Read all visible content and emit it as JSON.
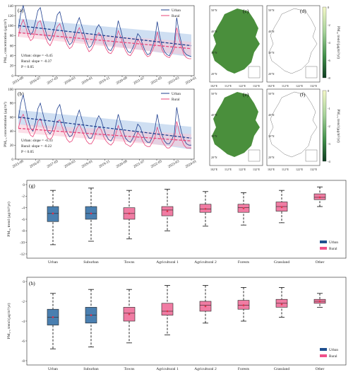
{
  "colors": {
    "urban": "#1f3f8f",
    "rural": "#e8457a",
    "urban_box": "#4a7fb0",
    "rural_box": "#f07ca3",
    "band_urban": "#a8c5e8",
    "band_rural": "#f7c4d6",
    "whisker": "#111111",
    "mean_dot": "#e0304a"
  },
  "panel_a": {
    "tag": "(a)",
    "ylabel": "PM₁₀ concentration (μg/m³)",
    "note_urban": "Urban: slope = -0.45",
    "note_rural": "Rural: slope = -0.37",
    "note_p": "P < 0.05"
  },
  "panel_b": {
    "tag": "(b)",
    "ylabel": "PM₂.₅ concentration (μg/m³)",
    "note_urban": "Urban: slope = -0.33",
    "note_rural": "Rural: slope = -0.22",
    "note_p": "P < 0.05"
  },
  "panel_g": {
    "tag": "(g)",
    "ylabel": "PM₁₀ trend (μg/m³/yr)"
  },
  "panel_h": {
    "tag": "(h)",
    "ylabel": "PM₂.₅ trend (μg/m³/yr)"
  },
  "maps": {
    "c": {
      "tag": "(c)",
      "cbar_label": "PM₁₀ trend (μg/m³/yr)",
      "cbar_ticks": [
        "0",
        "-2",
        "-4",
        "-6",
        "-8"
      ]
    },
    "d": {
      "tag": "(d)"
    },
    "e": {
      "tag": "(e)",
      "cbar_label": "PM₂.₅ trend (μg/m³/yr)",
      "cbar_ticks": [
        "0",
        "-1",
        "-2",
        "-3",
        "-4"
      ]
    },
    "f": {
      "tag": "(f)"
    },
    "lat_ticks": [
      "50°N",
      "40°N",
      "30°N",
      "20°N"
    ],
    "lon_ticks": [
      "102°E",
      "112°E",
      "122°E",
      "132°E"
    ]
  },
  "chart_data": [
    {
      "type": "line",
      "id": "a",
      "x_ticks": [
        "2015-09",
        "2016-07",
        "2017-05",
        "2018-03",
        "2019-01",
        "2019-11",
        "2020-09",
        "2021-07",
        "2022-05",
        "2023-03",
        "2024-01"
      ],
      "ylim": [
        0,
        140
      ],
      "y_ticks": [
        0,
        20,
        40,
        60,
        80,
        100,
        120,
        140
      ],
      "series": [
        {
          "name": "Urban",
          "values": [
            95,
            125,
            140,
            118,
            95,
            82,
            88,
            108,
            130,
            136,
            112,
            92,
            76,
            70,
            82,
            100,
            122,
            128,
            108,
            88,
            72,
            62,
            66,
            82,
            104,
            116,
            100,
            84,
            68,
            56,
            60,
            72,
            94,
            102,
            94,
            76,
            62,
            52,
            50,
            60,
            82,
            110,
            92,
            72,
            58,
            48,
            46,
            56,
            68,
            84,
            78,
            62,
            50,
            42,
            44,
            58,
            72,
            108,
            80,
            60,
            48,
            42,
            40,
            50,
            64,
            116,
            86,
            64,
            48,
            42,
            40,
            38
          ],
          "trend_start": 100,
          "trend_end": 60
        },
        {
          "name": "Rural",
          "values": [
            78,
            100,
            112,
            98,
            80,
            70,
            74,
            90,
            106,
            110,
            94,
            78,
            66,
            60,
            70,
            84,
            98,
            104,
            90,
            74,
            62,
            54,
            58,
            70,
            86,
            96,
            84,
            72,
            58,
            48,
            52,
            62,
            78,
            86,
            80,
            66,
            54,
            46,
            44,
            52,
            70,
            90,
            78,
            62,
            50,
            42,
            40,
            48,
            58,
            72,
            66,
            54,
            44,
            38,
            40,
            50,
            62,
            88,
            68,
            52,
            42,
            38,
            36,
            44,
            54,
            96,
            74,
            56,
            42,
            36,
            34,
            34
          ],
          "trend_start": 86,
          "trend_end": 54
        }
      ],
      "legend": "top-right"
    },
    {
      "type": "line",
      "id": "b",
      "x_ticks": [
        "2015-09",
        "2016-07",
        "2017-05",
        "2018-03",
        "2019-01",
        "2019-11",
        "2020-09",
        "2021-07",
        "2022-05",
        "2023-03",
        "2024-01"
      ],
      "ylim": [
        0,
        100
      ],
      "y_ticks": [
        0,
        20,
        40,
        60,
        80,
        100
      ],
      "series": [
        {
          "name": "Urban",
          "values": [
            58,
            80,
            92,
            74,
            56,
            44,
            40,
            52,
            72,
            80,
            66,
            52,
            40,
            36,
            42,
            56,
            72,
            78,
            62,
            48,
            38,
            32,
            34,
            44,
            60,
            70,
            58,
            46,
            36,
            30,
            30,
            38,
            54,
            62,
            56,
            44,
            34,
            28,
            26,
            32,
            48,
            64,
            52,
            40,
            30,
            26,
            24,
            30,
            38,
            50,
            46,
            36,
            28,
            24,
            24,
            32,
            42,
            64,
            46,
            34,
            26,
            22,
            22,
            28,
            36,
            74,
            54,
            38,
            28,
            22,
            20,
            20
          ],
          "trend_start": 60,
          "trend_end": 30
        },
        {
          "name": "Rural",
          "values": [
            44,
            58,
            64,
            54,
            42,
            34,
            32,
            40,
            54,
            58,
            48,
            38,
            30,
            28,
            32,
            42,
            54,
            56,
            46,
            36,
            28,
            24,
            26,
            34,
            44,
            50,
            42,
            34,
            26,
            22,
            22,
            28,
            40,
            46,
            42,
            32,
            26,
            22,
            20,
            24,
            36,
            48,
            38,
            30,
            22,
            20,
            18,
            22,
            28,
            38,
            34,
            26,
            20,
            18,
            18,
            24,
            30,
            46,
            34,
            26,
            20,
            16,
            16,
            20,
            26,
            54,
            40,
            28,
            20,
            16,
            16,
            16
          ],
          "trend_start": 44,
          "trend_end": 26
        }
      ],
      "legend": "top-right"
    },
    {
      "type": "box",
      "id": "g",
      "categories": [
        "Urban",
        "Suburban",
        "Towns",
        "Agricultural 1",
        "Agricultural 2",
        "Forests",
        "Grassland",
        "Other"
      ],
      "groups": [
        "Urban",
        "Urban",
        "Rural",
        "Rural",
        "Rural",
        "Rural",
        "Rural",
        "Rural"
      ],
      "ylim": [
        -12,
        0
      ],
      "y_ticks": [
        0,
        -2,
        -4,
        -6,
        -8,
        -10,
        -12
      ],
      "boxes": [
        {
          "min": -10.4,
          "q1": -6.4,
          "median": -5.0,
          "q3": -3.8,
          "max": -1.0,
          "mean": -5.0
        },
        {
          "min": -9.8,
          "q1": -6.0,
          "median": -5.0,
          "q3": -3.8,
          "max": -0.6,
          "mean": -5.0
        },
        {
          "min": -9.4,
          "q1": -6.0,
          "median": -5.0,
          "q3": -4.0,
          "max": -1.0,
          "mean": -5.0
        },
        {
          "min": -8.0,
          "q1": -5.4,
          "median": -4.4,
          "q3": -3.8,
          "max": -0.8,
          "mean": -4.6
        },
        {
          "min": -7.2,
          "q1": -4.8,
          "median": -4.2,
          "q3": -3.4,
          "max": -1.2,
          "mean": -4.2
        },
        {
          "min": -7.0,
          "q1": -4.8,
          "median": -4.0,
          "q3": -3.4,
          "max": -1.4,
          "mean": -4.1
        },
        {
          "min": -6.6,
          "q1": -4.6,
          "median": -3.8,
          "q3": -3.0,
          "max": -1.0,
          "mean": -3.9
        },
        {
          "min": -3.8,
          "q1": -2.6,
          "median": -2.2,
          "q3": -1.6,
          "max": -0.4,
          "mean": -2.2
        }
      ],
      "legend": [
        "Urban",
        "Rural"
      ]
    },
    {
      "type": "box",
      "id": "h",
      "categories": [
        "Urban",
        "Suburban",
        "Towns",
        "Agricultural 1",
        "Agricultural 2",
        "Forests",
        "Grassland",
        "Other"
      ],
      "groups": [
        "Urban",
        "Urban",
        "Rural",
        "Rural",
        "Rural",
        "Rural",
        "Rural",
        "Rural"
      ],
      "ylim": [
        -8,
        0
      ],
      "y_ticks": [
        0,
        -2,
        -4,
        -6,
        -8
      ],
      "boxes": [
        {
          "min": -6.8,
          "q1": -4.4,
          "median": -3.6,
          "q3": -2.8,
          "max": -1.2,
          "mean": -3.6
        },
        {
          "min": -6.6,
          "q1": -4.2,
          "median": -3.4,
          "q3": -2.6,
          "max": -0.8,
          "mean": -3.4
        },
        {
          "min": -6.2,
          "q1": -4.0,
          "median": -3.2,
          "q3": -2.6,
          "max": -0.8,
          "mean": -3.3
        },
        {
          "min": -5.4,
          "q1": -3.4,
          "median": -3.0,
          "q3": -2.2,
          "max": -0.4,
          "mean": -3.0
        },
        {
          "min": -4.2,
          "q1": -3.0,
          "median": -2.4,
          "q3": -2.0,
          "max": -0.4,
          "mean": -2.5
        },
        {
          "min": -4.0,
          "q1": -2.8,
          "median": -2.4,
          "q3": -1.9,
          "max": -0.6,
          "mean": -2.4
        },
        {
          "min": -3.6,
          "q1": -2.6,
          "median": -2.2,
          "q3": -1.8,
          "max": -0.6,
          "mean": -2.3
        },
        {
          "min": -2.6,
          "q1": -2.2,
          "median": -2.0,
          "q3": -1.8,
          "max": -1.2,
          "mean": -2.0
        }
      ],
      "legend": [
        "Urban",
        "Rural"
      ]
    }
  ]
}
